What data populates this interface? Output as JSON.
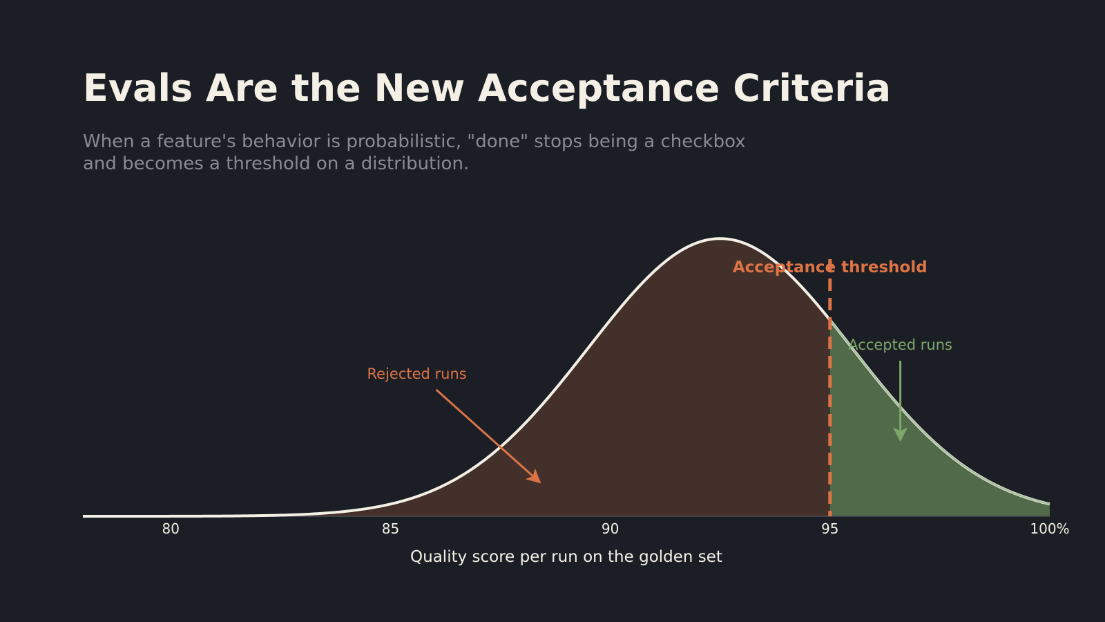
{
  "slide": {
    "title": "Evals Are the New Acceptance Criteria",
    "subtitle_lines": [
      "When a feature's behavior is probabilistic, \"done\" stops being a checkbox",
      "and becomes a threshold on a distribution."
    ]
  },
  "colors": {
    "background": "#1b1e25",
    "title": "#f4f0e6",
    "subtitle": "#878b96",
    "curve": "#f4f0e6",
    "rejected_fill": "#43302b",
    "accepted_fill": "#516a4a",
    "accepted_edge": "#a9c0a1",
    "threshold": "#dd7446",
    "accepted_text": "#7ea86a",
    "axis_text": "#f4f0e6"
  },
  "chart_data": {
    "type": "area",
    "distribution": "normal",
    "mean": 92.5,
    "std_dev": 3.0,
    "xlim": [
      78,
      100
    ],
    "ylim": [
      0,
      0.14
    ],
    "xlabel": "Quality score per run on the golden set",
    "ylabel": "",
    "x_ticks": [
      80,
      85,
      90,
      95,
      100
    ],
    "x_tick_labels": [
      "80",
      "85",
      "90",
      "95",
      "100%"
    ],
    "grid": false,
    "threshold": {
      "x": 95,
      "label": "Acceptance threshold"
    },
    "regions": [
      {
        "name": "rejected",
        "from": 78,
        "to": 95
      },
      {
        "name": "accepted",
        "from": 95,
        "to": 100
      }
    ],
    "annotations": [
      {
        "id": "rejected",
        "text": "Rejected runs",
        "x": 85.6,
        "y": 0.0606,
        "arrow_to": [
          88.4,
          0.0162
        ]
      },
      {
        "id": "accepted",
        "text": "Accepted runs",
        "x": 96.6,
        "y": 0.0745,
        "arrow_to": [
          96.6,
          0.0363
        ]
      }
    ]
  }
}
